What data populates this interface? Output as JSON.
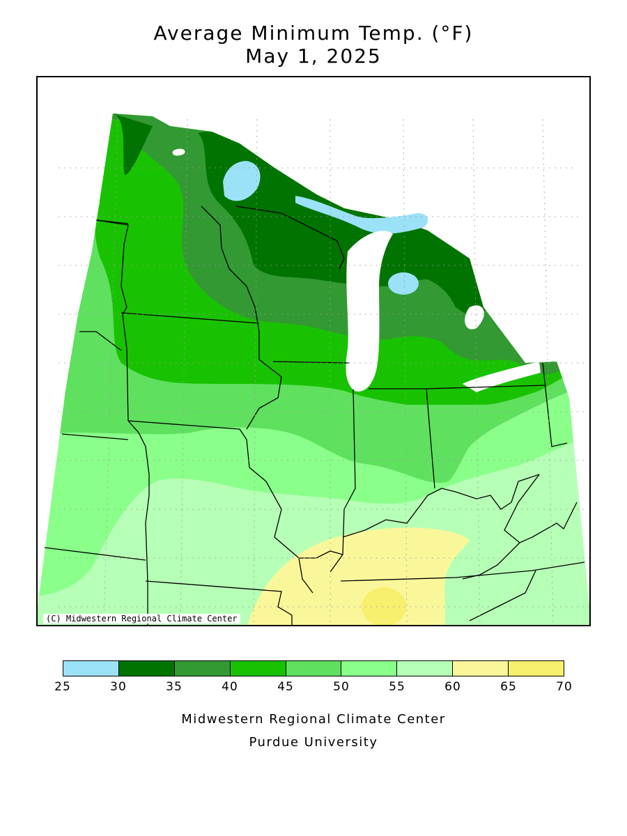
{
  "title": {
    "line1": "Average Minimum Temp. (°F)",
    "line2": "May 1, 2025"
  },
  "map": {
    "copyright": "(C) Midwestern Regional Climate Center",
    "colors": {
      "water": "#ffffff",
      "lakes_cold": "#9be1f7",
      "band_30_35": "#007300",
      "band_35_40": "#339933",
      "band_40_45": "#19c200",
      "band_45_50": "#5fe05f",
      "band_50_55": "#8aff8a",
      "band_55_60": "#b6ffb6",
      "band_60_65": "#faf79b",
      "band_65_70": "#f7ef6e"
    }
  },
  "legend": {
    "units": "°F",
    "bins": [
      {
        "min": 25,
        "max": 30,
        "color": "#9be1f7"
      },
      {
        "min": 30,
        "max": 35,
        "color": "#007300"
      },
      {
        "min": 35,
        "max": 40,
        "color": "#339933"
      },
      {
        "min": 40,
        "max": 45,
        "color": "#19c200"
      },
      {
        "min": 45,
        "max": 50,
        "color": "#5fe05f"
      },
      {
        "min": 50,
        "max": 55,
        "color": "#8aff8a"
      },
      {
        "min": 55,
        "max": 60,
        "color": "#b6ffb6"
      },
      {
        "min": 60,
        "max": 65,
        "color": "#faf79b"
      },
      {
        "min": 65,
        "max": 70,
        "color": "#f7ef6e"
      }
    ],
    "ticks": [
      "25",
      "30",
      "35",
      "40",
      "45",
      "50",
      "55",
      "60",
      "65",
      "70"
    ]
  },
  "footer": {
    "line1": "Midwestern Regional Climate Center",
    "line2": "Purdue University"
  }
}
